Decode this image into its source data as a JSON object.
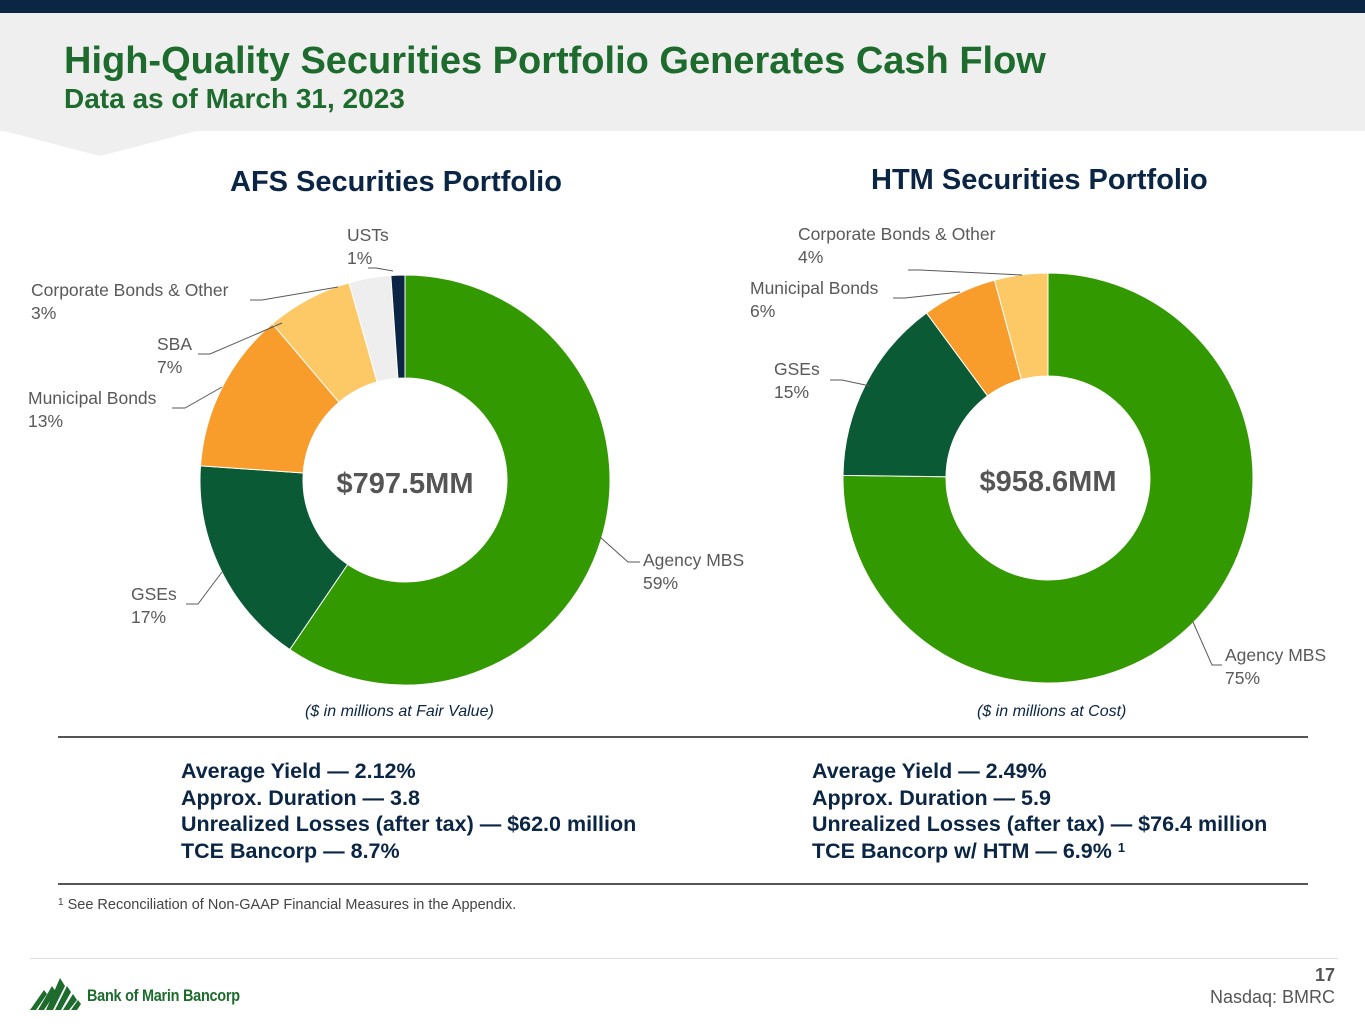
{
  "header": {
    "title": "High-Quality Securities Portfolio Generates Cash Flow",
    "subtitle": "Data as of March 31, 2023"
  },
  "colors": {
    "navy": "#0b2545",
    "title_green": "#1e6b2e",
    "agency_mbs": "#339900",
    "gses": "#0b5a36",
    "municipal_bonds": "#f89c2c",
    "sba": "#fdc866",
    "corporate_bonds": "#fdc866",
    "usts_light": "#eeeeee",
    "usts_dark": "#0b2545"
  },
  "chart_data": [
    {
      "type": "pie",
      "title": "AFS Securities Portfolio",
      "center_label": "$797.5MM",
      "note": "($ in millions at Fair Value)",
      "slices": [
        {
          "label": "Agency MBS",
          "pct_label": "59%",
          "value": 59.5,
          "color": "#339900"
        },
        {
          "label": "GSEs",
          "pct_label": "17%",
          "value": 16.6,
          "color": "#0b5a36"
        },
        {
          "label": "Municipal Bonds",
          "pct_label": "13%",
          "value": 12.7,
          "color": "#f89c2c"
        },
        {
          "label": "SBA",
          "pct_label": "7%",
          "value": 6.8,
          "color": "#fdc866"
        },
        {
          "label": "Corporate Bonds & Other",
          "pct_label": "3%",
          "value": 3.3,
          "color": "#eeeeee"
        },
        {
          "label": "USTs",
          "pct_label": "1%",
          "value": 1.1,
          "color": "#0b2545"
        }
      ]
    },
    {
      "type": "pie",
      "title": "HTM Securities Portfolio",
      "center_label": "$958.6MM",
      "note": "($ in millions at Cost)",
      "slices": [
        {
          "label": "Agency MBS",
          "pct_label": "75%",
          "value": 75.2,
          "color": "#339900"
        },
        {
          "label": "GSEs",
          "pct_label": "15%",
          "value": 14.7,
          "color": "#0b5a36"
        },
        {
          "label": "Municipal Bonds",
          "pct_label": "6%",
          "value": 5.9,
          "color": "#f89c2c"
        },
        {
          "label": "Corporate Bonds & Other",
          "pct_label": "4%",
          "value": 4.2,
          "color": "#fdc866"
        }
      ]
    }
  ],
  "afs_stats": {
    "line1": "Average Yield — 2.12%",
    "line2": "Approx. Duration — 3.8",
    "line3": "Unrealized Losses (after tax) — $62.0 million",
    "line4": "TCE Bancorp — 8.7%"
  },
  "htm_stats": {
    "line1": "Average Yield — 2.49%",
    "line2": "Approx. Duration — 5.9",
    "line3": "Unrealized Losses (after tax) — $76.4 million",
    "line4": "TCE Bancorp w/ HTM — 6.9%",
    "line4_sup": "1"
  },
  "footnote": {
    "marker": "1",
    "text": "See Reconciliation of Non-GAAP Financial Measures in the Appendix."
  },
  "footer": {
    "company": "Bank of Marin Bancorp",
    "page_number": "17",
    "ticker": "Nasdaq: BMRC"
  }
}
